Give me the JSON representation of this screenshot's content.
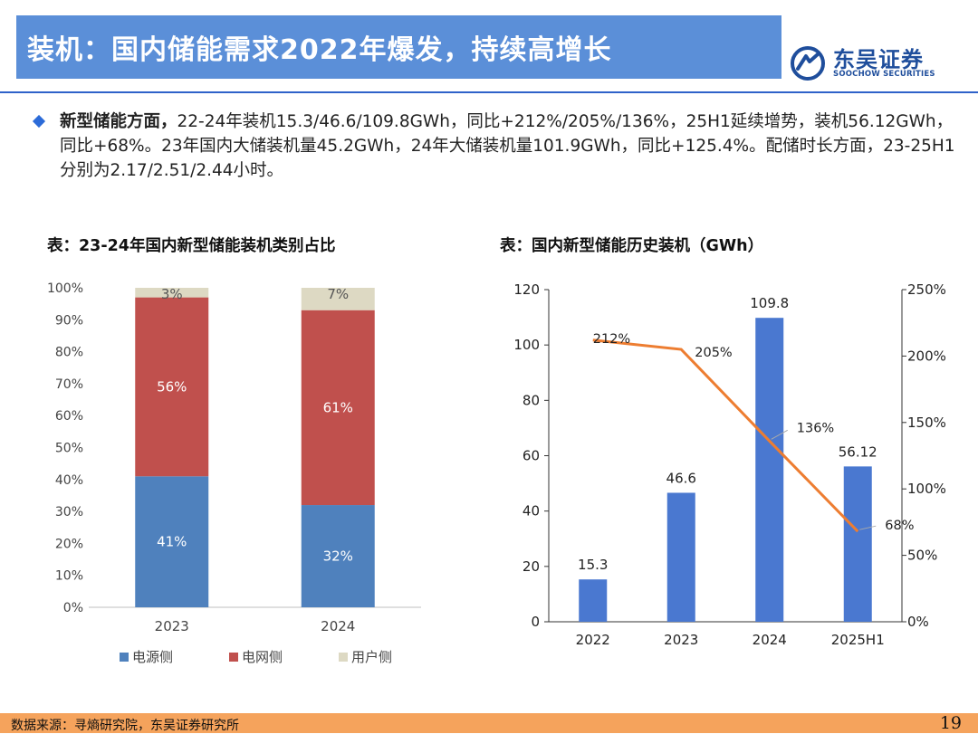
{
  "header": {
    "title": "装机：国内储能需求2022年爆发，持续高增长",
    "logo_cn": "东吴证券",
    "logo_en": "SOOCHOW SECURITIES"
  },
  "bullet": {
    "bold": "新型储能方面，",
    "text": "22-24年装机15.3/46.6/109.8GWh，同比+212%/205%/136%，25H1延续增势，装机56.12GWh，同比+68%。23年国内大储装机量45.2GWh，24年大储装机量101.9GWh，同比+125.4%。配储时长方面，23-25H1分别为2.17/2.51/2.44小时。"
  },
  "captions": {
    "left": "表：23-24年国内新型储能装机类别占比",
    "right": "表：国内新型储能历史装机（GWh）"
  },
  "colors": {
    "title_bar": "#5b8fd8",
    "source_side": "#4f81bd",
    "grid_side": "#c0504d",
    "user_side": "#ddd9c3",
    "bar_blue": "#4a78d0",
    "line_orange": "#ed7d31",
    "footer": "#f5a35c"
  },
  "chart_data": [
    {
      "type": "bar",
      "stacked": true,
      "categories": [
        "2023",
        "2024"
      ],
      "series": [
        {
          "name": "电源侧",
          "values": [
            41,
            32
          ],
          "labels": [
            "41%",
            "32%"
          ]
        },
        {
          "name": "电网侧",
          "values": [
            56,
            61
          ],
          "labels": [
            "56%",
            "61%"
          ]
        },
        {
          "name": "用户侧",
          "values": [
            3,
            7
          ],
          "labels": [
            "3%",
            "7%"
          ]
        }
      ],
      "ylim": [
        0,
        100
      ],
      "yticks": [
        "0%",
        "10%",
        "20%",
        "30%",
        "40%",
        "50%",
        "60%",
        "70%",
        "80%",
        "90%",
        "100%"
      ],
      "legend_position": "bottom"
    },
    {
      "type": "bar",
      "categories": [
        "2022",
        "2023",
        "2024",
        "2025H1"
      ],
      "series": [
        {
          "values": [
            15.3,
            46.6,
            109.8,
            56.12
          ],
          "labels": [
            "15.3",
            "46.6",
            "109.8",
            "56.12"
          ],
          "axis": "left"
        },
        {
          "values": [
            212,
            205,
            136,
            68
          ],
          "labels": [
            "212%",
            "205%",
            "136%",
            "68%"
          ],
          "axis": "right",
          "render": "line"
        }
      ],
      "ylim": [
        0,
        120
      ],
      "yticks": [
        "0",
        "20",
        "40",
        "60",
        "80",
        "100",
        "120"
      ],
      "y2lim": [
        0,
        250
      ],
      "y2ticks": [
        "0%",
        "50%",
        "100%",
        "150%",
        "200%",
        "250%"
      ]
    }
  ],
  "footer": {
    "source": "数据来源：寻熵研究院，东吴证券研究所",
    "page": "19"
  }
}
